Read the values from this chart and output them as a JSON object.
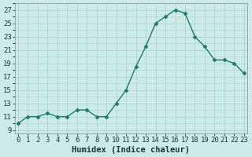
{
  "x": [
    0,
    1,
    2,
    3,
    4,
    5,
    6,
    7,
    8,
    9,
    10,
    11,
    12,
    13,
    14,
    15,
    16,
    17,
    18,
    19,
    20,
    21,
    22,
    23
  ],
  "y": [
    10,
    11,
    11,
    11.5,
    11,
    11,
    12,
    12,
    11,
    11,
    13,
    15,
    18.5,
    21.5,
    25,
    26,
    27,
    26.5,
    23,
    21.5,
    19.5,
    19.5,
    19,
    17.5
  ],
  "line_color": "#1f7a6e",
  "marker_color": "#1f7a6e",
  "bg_color": "#cceae6",
  "grid_color": "#aad5cf",
  "xlabel": "Humidex (Indice chaleur)",
  "yticks": [
    9,
    11,
    13,
    15,
    17,
    19,
    21,
    23,
    25,
    27
  ],
  "xtick_labels": [
    "0",
    "1",
    "2",
    "3",
    "4",
    "5",
    "6",
    "7",
    "8",
    "9",
    "10",
    "11",
    "12",
    "13",
    "14",
    "15",
    "16",
    "17",
    "18",
    "19",
    "20",
    "21",
    "22",
    "23"
  ],
  "xlim": [
    -0.3,
    23.3
  ],
  "ylim": [
    8.5,
    28.0
  ],
  "xlabel_fontsize": 7.5,
  "tick_fontsize": 6.5
}
